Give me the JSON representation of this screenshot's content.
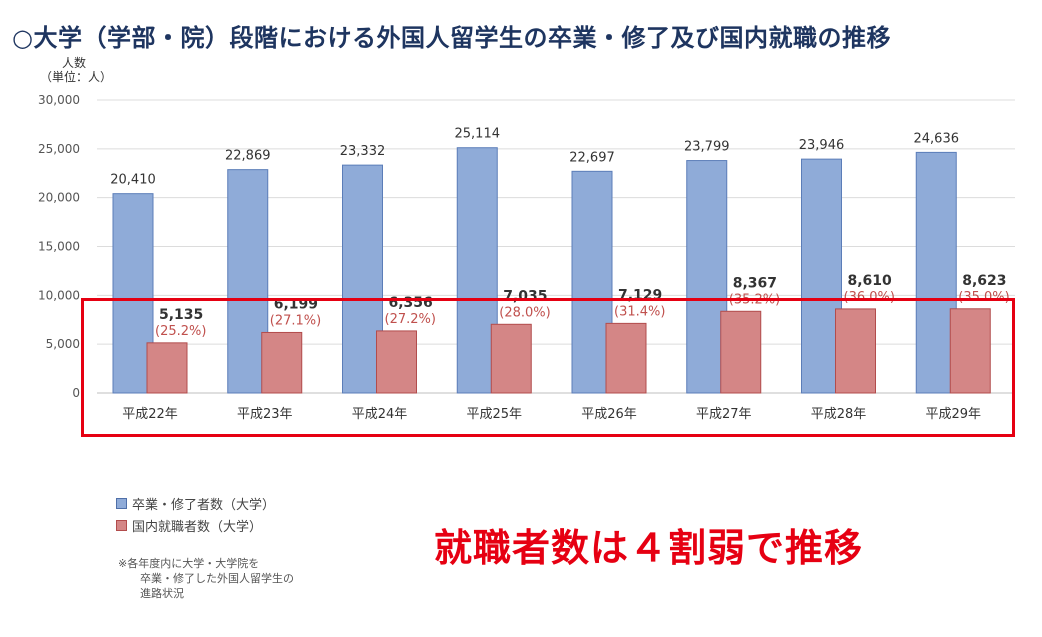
{
  "title": "○大学（学部・院）段階における外国人留学生の卒業・修了及び国内就職の推移",
  "unit_label": {
    "line1": "人数",
    "line2": "（単位：人）"
  },
  "chart_data": {
    "type": "bar",
    "categories": [
      "平成22年",
      "平成23年",
      "平成24年",
      "平成25年",
      "平成26年",
      "平成27年",
      "平成28年",
      "平成29年"
    ],
    "series": [
      {
        "name": "卒業・修了者数（大学）",
        "values": [
          20410,
          22869,
          23332,
          25114,
          22697,
          23799,
          23946,
          24636
        ],
        "color": "#8fabd8"
      },
      {
        "name": "国内就職者数（大学）",
        "values": [
          5135,
          6199,
          6356,
          7035,
          7129,
          8367,
          8610,
          8623
        ],
        "color": "#d48686",
        "ratios": [
          "(25.2%)",
          "(27.1%)",
          "(27.2%)",
          "(28.0%)",
          "(31.4%)",
          "(35.2%)",
          "(36.0%)",
          "(35.0%)"
        ]
      }
    ],
    "y_ticks": [
      "30,000",
      "25,000",
      "20,000",
      "15,000",
      "10,000",
      "5,000",
      "0"
    ],
    "ylim": [
      0,
      30000
    ],
    "grid": true,
    "legend_position": "bottom-left"
  },
  "legend": [
    {
      "label": "卒業・修了者数（大学）",
      "color": "#8fabd8"
    },
    {
      "label": "国内就職者数（大学）",
      "color": "#d48686"
    }
  ],
  "note": {
    "line1": "※各年度内に大学・大学院を",
    "line2": "卒業・修了した外国人留学生の",
    "line3": "進路状況"
  },
  "callout": "就職者数は４割弱で推移",
  "colors": {
    "title": "#1e3560",
    "highlight": "#e60012",
    "ratio_text": "#c0504d"
  }
}
